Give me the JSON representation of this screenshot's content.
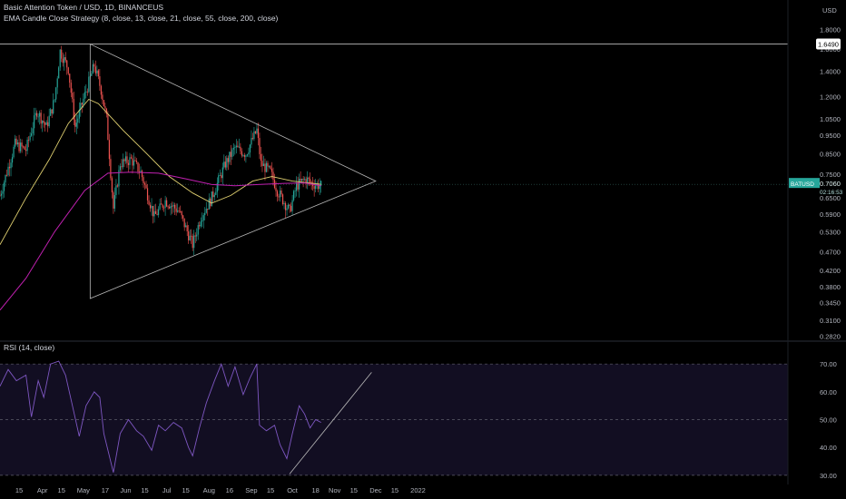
{
  "header": {
    "symbol_line": "Basic Attention Token / USD, 1D, BINANCEUS",
    "indicator_line": "EMA Candle Close Strategy (8, close, 13, close, 21, close, 55, close, 200, close)",
    "currency": "USD"
  },
  "rsi_panel": {
    "label": "RSI (14, close)",
    "levels": [
      70,
      50,
      30
    ],
    "ticks": [
      "70.00",
      "60.00",
      "50.00",
      "40.00",
      "30.00"
    ]
  },
  "price_axis": {
    "ticks": [
      "1.8000",
      "1.6000",
      "1.4000",
      "1.2000",
      "1.0500",
      "0.9500",
      "0.8500",
      "0.7500",
      "0.6500",
      "0.5900",
      "0.5300",
      "0.4700",
      "0.4200",
      "0.3800",
      "0.3450",
      "0.3100",
      "0.2820"
    ],
    "marker_line_label": "1.6490",
    "current_symbol": "BATUSD",
    "current_price": "0.7060",
    "countdown": "02:16:53"
  },
  "colors": {
    "background": "#000000",
    "candle_up": "#26a69a",
    "candle_down": "#ef5350",
    "ema_55": "#e0d070",
    "ema_200": "#c020b0",
    "rsi_line": "#7e57c2",
    "rsi_band": "#120e22",
    "drawing": "#b8b8b8",
    "price_label_bg": "#26a69a"
  },
  "chart_data": [
    {
      "type": "candlestick",
      "title": "Basic Attention Token / USD, 1D, BINANCEUS",
      "x_axis_labels": [
        "15",
        "Apr",
        "15",
        "May",
        "17",
        "Jun",
        "15",
        "Jul",
        "15",
        "Aug",
        "16",
        "Sep",
        "15",
        "Oct",
        "18",
        "Nov",
        "15",
        "Dec",
        "15",
        "2022"
      ],
      "y_scale": "log",
      "ylim": [
        0.275,
        1.95
      ],
      "price_points": [
        [
          "2021-03-01",
          0.66
        ],
        [
          "2021-03-12",
          0.9
        ],
        [
          "2021-03-20",
          0.87
        ],
        [
          "2021-03-28",
          1.1
        ],
        [
          "2021-04-04",
          1.0
        ],
        [
          "2021-04-10",
          1.18
        ],
        [
          "2021-04-14",
          1.58
        ],
        [
          "2021-04-20",
          1.42
        ],
        [
          "2021-04-25",
          1.0
        ],
        [
          "2021-05-01",
          1.18
        ],
        [
          "2021-05-09",
          1.45
        ],
        [
          "2021-05-14",
          1.25
        ],
        [
          "2021-05-18",
          1.05
        ],
        [
          "2021-05-23",
          0.61
        ],
        [
          "2021-05-28",
          0.8
        ],
        [
          "2021-06-05",
          0.82
        ],
        [
          "2021-06-12",
          0.76
        ],
        [
          "2021-06-22",
          0.58
        ],
        [
          "2021-06-30",
          0.64
        ],
        [
          "2021-07-10",
          0.6
        ],
        [
          "2021-07-20",
          0.49
        ],
        [
          "2021-07-26",
          0.58
        ],
        [
          "2021-08-02",
          0.64
        ],
        [
          "2021-08-13",
          0.8
        ],
        [
          "2021-08-20",
          0.88
        ],
        [
          "2021-08-28",
          0.85
        ],
        [
          "2021-09-05",
          0.98
        ],
        [
          "2021-09-08",
          0.8
        ],
        [
          "2021-09-15",
          0.76
        ],
        [
          "2021-09-20",
          0.68
        ],
        [
          "2021-09-29",
          0.6
        ],
        [
          "2021-10-04",
          0.7
        ],
        [
          "2021-10-11",
          0.73
        ],
        [
          "2021-10-15",
          0.71
        ],
        [
          "2021-10-22",
          0.7
        ]
      ],
      "ema_55": [
        [
          "2021-03-01",
          0.49
        ],
        [
          "2021-03-20",
          0.65
        ],
        [
          "2021-04-06",
          0.82
        ],
        [
          "2021-04-20",
          1.02
        ],
        [
          "2021-05-05",
          1.18
        ],
        [
          "2021-05-12",
          1.15
        ],
        [
          "2021-05-30",
          0.98
        ],
        [
          "2021-06-15",
          0.86
        ],
        [
          "2021-07-03",
          0.74
        ],
        [
          "2021-07-20",
          0.67
        ],
        [
          "2021-08-03",
          0.63
        ],
        [
          "2021-08-17",
          0.66
        ],
        [
          "2021-09-02",
          0.72
        ],
        [
          "2021-09-16",
          0.74
        ],
        [
          "2021-10-01",
          0.72
        ],
        [
          "2021-10-22",
          0.706
        ]
      ],
      "ema_200": [
        [
          "2021-03-01",
          0.33
        ],
        [
          "2021-03-20",
          0.4
        ],
        [
          "2021-04-10",
          0.53
        ],
        [
          "2021-05-02",
          0.68
        ],
        [
          "2021-05-19",
          0.755
        ],
        [
          "2021-06-05",
          0.76
        ],
        [
          "2021-06-25",
          0.755
        ],
        [
          "2021-07-15",
          0.73
        ],
        [
          "2021-08-03",
          0.705
        ],
        [
          "2021-08-20",
          0.7
        ],
        [
          "2021-09-06",
          0.705
        ],
        [
          "2021-09-25",
          0.71
        ],
        [
          "2021-10-10",
          0.712
        ],
        [
          "2021-10-22",
          0.7
        ]
      ],
      "triangle": {
        "top_start": [
          "2021-05-06",
          1.649
        ],
        "bottom_start": [
          "2021-05-06",
          0.354
        ],
        "apex": [
          "2021-12-01",
          0.72
        ]
      },
      "horizontal_line": 1.649,
      "current_price": 0.706
    },
    {
      "type": "line",
      "title": "RSI (14, close)",
      "ylim": [
        28,
        73
      ],
      "series": [
        {
          "values": [
            [
              "2021-03-01",
              62
            ],
            [
              "2021-03-07",
              68
            ],
            [
              "2021-03-13",
              64
            ],
            [
              "2021-03-20",
              66
            ],
            [
              "2021-03-24",
              51
            ],
            [
              "2021-03-29",
              64
            ],
            [
              "2021-04-02",
              58
            ],
            [
              "2021-04-07",
              70
            ],
            [
              "2021-04-13",
              71
            ],
            [
              "2021-04-18",
              66
            ],
            [
              "2021-04-23",
              55
            ],
            [
              "2021-04-28",
              44
            ],
            [
              "2021-05-03",
              55
            ],
            [
              "2021-05-09",
              60
            ],
            [
              "2021-05-13",
              58
            ],
            [
              "2021-05-16",
              45
            ],
            [
              "2021-05-20",
              37
            ],
            [
              "2021-05-23",
              31
            ],
            [
              "2021-05-28",
              45
            ],
            [
              "2021-06-03",
              50
            ],
            [
              "2021-06-09",
              46
            ],
            [
              "2021-06-14",
              44
            ],
            [
              "2021-06-20",
              39
            ],
            [
              "2021-06-25",
              48
            ],
            [
              "2021-06-30",
              46
            ],
            [
              "2021-07-06",
              49
            ],
            [
              "2021-07-12",
              47
            ],
            [
              "2021-07-17",
              40
            ],
            [
              "2021-07-20",
              37
            ],
            [
              "2021-07-25",
              47
            ],
            [
              "2021-07-30",
              56
            ],
            [
              "2021-08-05",
              64
            ],
            [
              "2021-08-10",
              70
            ],
            [
              "2021-08-15",
              62
            ],
            [
              "2021-08-20",
              69
            ],
            [
              "2021-08-26",
              59
            ],
            [
              "2021-08-31",
              65
            ],
            [
              "2021-09-05",
              70
            ],
            [
              "2021-09-07",
              48
            ],
            [
              "2021-09-12",
              46
            ],
            [
              "2021-09-18",
              48
            ],
            [
              "2021-09-22",
              41
            ],
            [
              "2021-09-27",
              36
            ],
            [
              "2021-10-01",
              45
            ],
            [
              "2021-10-06",
              55
            ],
            [
              "2021-10-10",
              52
            ],
            [
              "2021-10-14",
              47
            ],
            [
              "2021-10-18",
              50
            ],
            [
              "2021-10-22",
              49
            ]
          ]
        }
      ],
      "trendline": [
        [
          "2021-09-29",
          30.5
        ],
        [
          "2021-11-28",
          67
        ]
      ]
    }
  ]
}
